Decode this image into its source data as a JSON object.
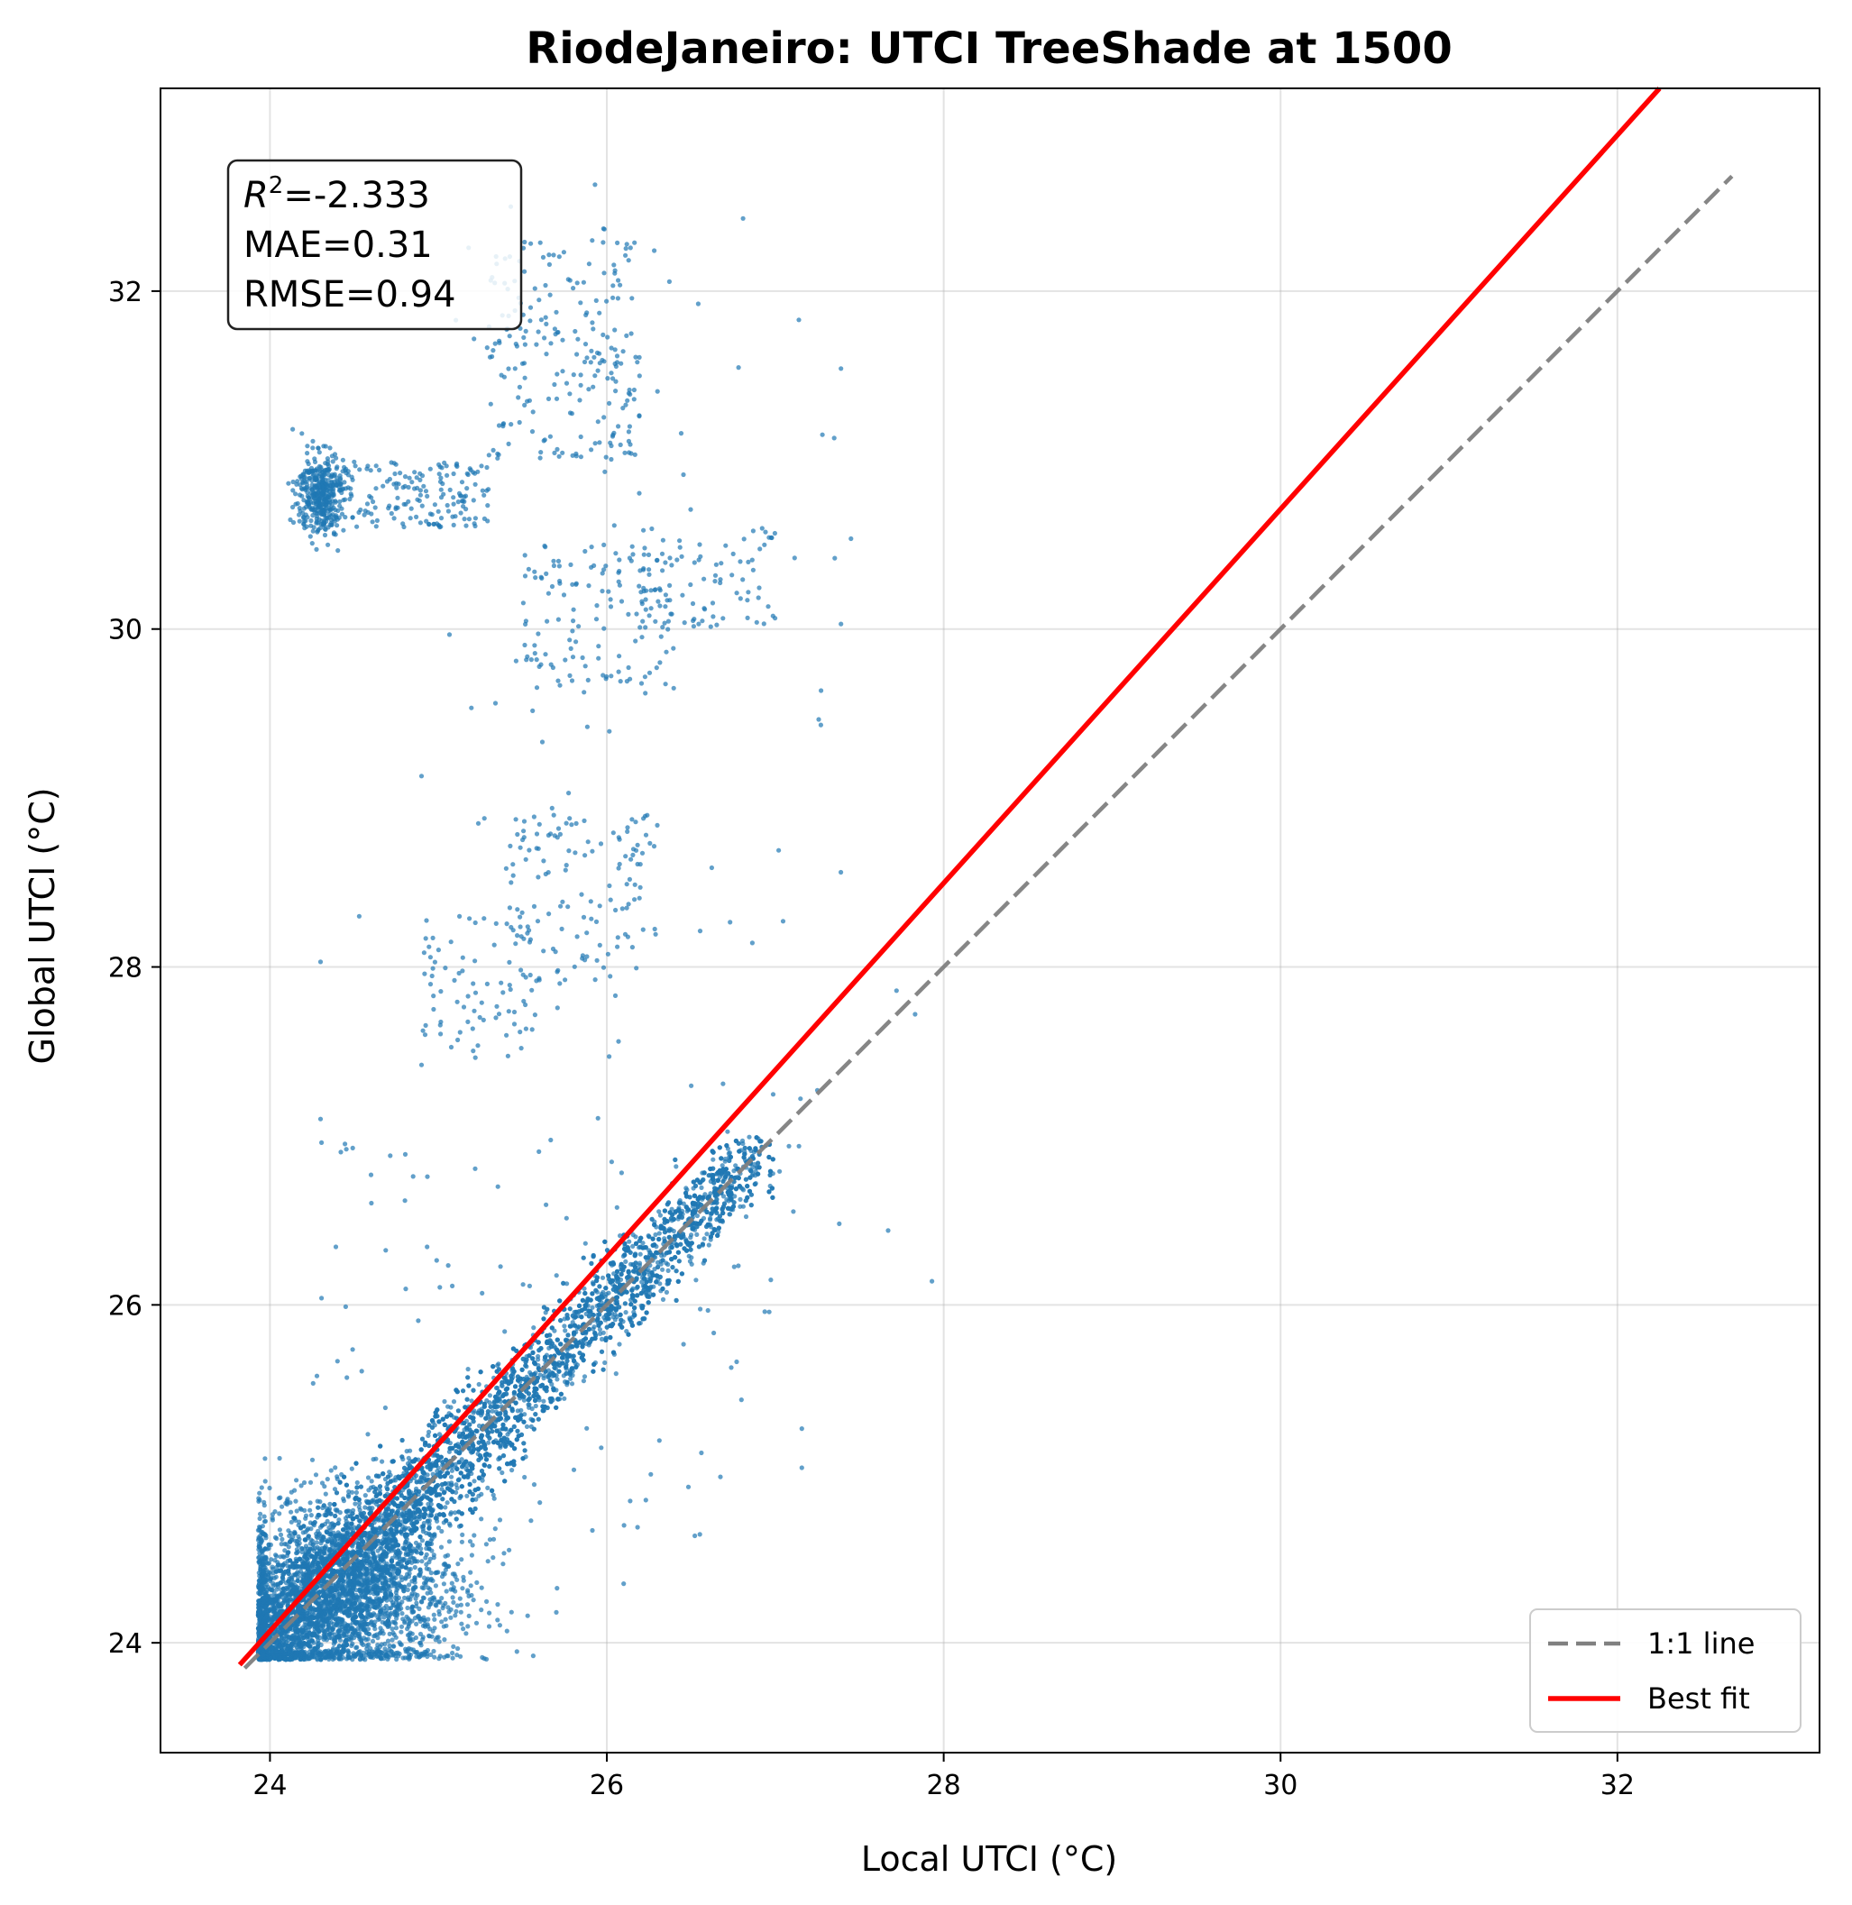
{
  "chart_data": {
    "type": "scatter",
    "title": "RiodeJaneiro: UTCI TreeShade at 1500",
    "xlabel": "Local UTCI (°C)",
    "ylabel": "Global UTCI (°C)",
    "xlim": [
      23.35,
      33.2
    ],
    "ylim": [
      23.35,
      33.2
    ],
    "xticks": [
      24,
      26,
      28,
      30,
      32
    ],
    "yticks": [
      24,
      26,
      28,
      30,
      32
    ],
    "grid": true,
    "legend_position": "lower-right",
    "stats": {
      "r2_symbol": "R",
      "r2_exp": "2",
      "r2_value": "=-2.333",
      "mae": "MAE=0.31",
      "rmse": "RMSE=0.94"
    },
    "reference_line": {
      "name": "1:1 line",
      "x": [
        23.85,
        32.68
      ],
      "y": [
        23.85,
        32.68
      ],
      "color": "#808080",
      "dashed": true
    },
    "fit_line": {
      "name": "Best fit",
      "x": [
        23.82,
        32.25
      ],
      "y": [
        23.87,
        33.2
      ],
      "color": "#ff0000"
    },
    "scatter_color": "#1f77b4",
    "clusters": [
      {
        "kind": "diagonal",
        "n": 6500,
        "x": [
          23.95,
          26.9
        ],
        "spread": 0.28
      },
      {
        "kind": "blob",
        "n": 2200,
        "cx": 24.45,
        "cy": 24.3,
        "sx": 0.35,
        "sy": 0.28
      },
      {
        "kind": "blob",
        "n": 400,
        "cx": 24.3,
        "cy": 30.8,
        "sx": 0.07,
        "sy": 0.12
      },
      {
        "kind": "band",
        "n": 180,
        "x": [
          24.3,
          25.3
        ],
        "y": [
          30.6,
          31.0
        ]
      },
      {
        "kind": "band",
        "n": 220,
        "x": [
          25.3,
          26.2
        ],
        "y": [
          31.0,
          32.3
        ]
      },
      {
        "kind": "band",
        "n": 130,
        "x": [
          25.5,
          26.4
        ],
        "y": [
          29.6,
          30.5
        ]
      },
      {
        "kind": "band",
        "n": 90,
        "x": [
          26.2,
          27.0
        ],
        "y": [
          30.0,
          30.6
        ]
      },
      {
        "kind": "band",
        "n": 130,
        "x": [
          25.4,
          26.3
        ],
        "y": [
          27.9,
          28.9
        ]
      },
      {
        "kind": "band",
        "n": 80,
        "x": [
          24.9,
          25.6
        ],
        "y": [
          27.5,
          28.3
        ]
      },
      {
        "kind": "band",
        "n": 110,
        "x": [
          24.2,
          27.2
        ],
        "y": [
          24.6,
          27.0
        ]
      },
      {
        "kind": "band",
        "n": 70,
        "x": [
          24.9,
          27.5
        ],
        "y": [
          27.0,
          32.6
        ]
      }
    ],
    "outliers": [
      {
        "x": 27.93,
        "y": 26.14
      },
      {
        "x": 27.67,
        "y": 26.44
      },
      {
        "x": 27.38,
        "y": 26.48
      },
      {
        "x": 27.83,
        "y": 27.72
      },
      {
        "x": 27.72,
        "y": 27.86
      },
      {
        "x": 27.39,
        "y": 30.03
      },
      {
        "x": 27.28,
        "y": 31.15
      },
      {
        "x": 27.35,
        "y": 31.13
      },
      {
        "x": 27.14,
        "y": 31.83
      },
      {
        "x": 25.93,
        "y": 32.63
      },
      {
        "x": 25.43,
        "y": 32.5
      },
      {
        "x": 25.98,
        "y": 32.37
      },
      {
        "x": 24.53,
        "y": 28.3
      },
      {
        "x": 24.3,
        "y": 28.03
      },
      {
        "x": 24.3,
        "y": 27.1
      },
      {
        "x": 24.6,
        "y": 26.77
      },
      {
        "x": 24.85,
        "y": 26.76
      },
      {
        "x": 24.9,
        "y": 29.13
      },
      {
        "x": 24.9,
        "y": 27.42
      },
      {
        "x": 25.53,
        "y": 24.16
      },
      {
        "x": 25.7,
        "y": 24.18
      },
      {
        "x": 26.1,
        "y": 24.35
      },
      {
        "x": 27.15,
        "y": 27.22
      },
      {
        "x": 27.25,
        "y": 27.27
      }
    ]
  }
}
